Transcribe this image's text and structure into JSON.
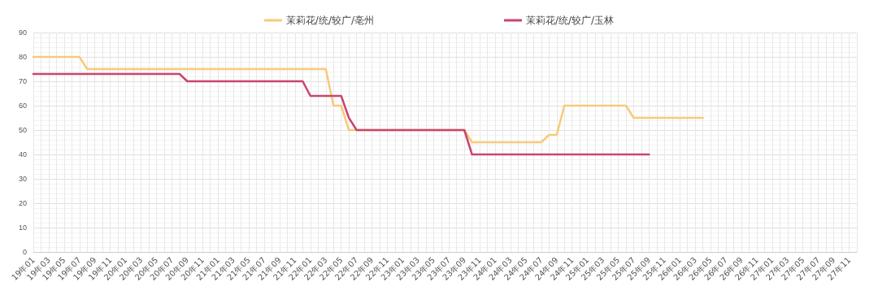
{
  "chart_data": {
    "type": "line",
    "categories": [
      "19年01",
      null,
      "19年03",
      null,
      "19年05",
      null,
      "19年07",
      null,
      "19年09",
      null,
      "19年11",
      null,
      "20年01",
      null,
      "20年03",
      null,
      "20年05",
      null,
      "20年07",
      null,
      "20年09",
      null,
      "20年11",
      null,
      "21年01",
      null,
      "21年03",
      null,
      "21年05",
      null,
      "21年07",
      null,
      "21年09",
      null,
      "21年11",
      null,
      "22年01",
      null,
      "22年03",
      null,
      "22年05",
      null,
      "22年07",
      null,
      "22年09",
      null,
      "22年11",
      null,
      "23年01",
      null,
      "23年03",
      null,
      "23年05",
      null,
      "23年07",
      null,
      "23年09",
      null,
      "23年11",
      null,
      "24年01",
      null,
      "24年03",
      null,
      "24年05",
      null,
      "24年07",
      null,
      "24年09",
      null,
      "24年11",
      null,
      "25年01",
      null,
      "25年03",
      null,
      "25年05",
      null,
      "25年07",
      null,
      "25年09",
      null,
      "25年11",
      null,
      "26年01",
      null,
      "26年03",
      null,
      "26年05",
      null,
      "26年07",
      null,
      "26年09",
      null,
      "26年11",
      null,
      "27年01",
      null,
      "27年03",
      null,
      "27年05",
      null,
      "27年07",
      null,
      "27年09",
      null,
      "27年11",
      null
    ],
    "series": [
      {
        "name": "茉莉花/统/较广/亳州",
        "color": "#f8c97a",
        "values": [
          80,
          80,
          80,
          80,
          80,
          80,
          80,
          75,
          75,
          75,
          75,
          75,
          75,
          75,
          75,
          75,
          75,
          75,
          75,
          75,
          75,
          75,
          75,
          75,
          75,
          75,
          75,
          75,
          75,
          75,
          75,
          75,
          75,
          75,
          75,
          75,
          75,
          75,
          75,
          60,
          60,
          50,
          50,
          50,
          50,
          50,
          50,
          50,
          50,
          50,
          50,
          50,
          50,
          50,
          50,
          50,
          50,
          45,
          45,
          45,
          45,
          45,
          45,
          45,
          45,
          45,
          45,
          48,
          48,
          60,
          60,
          60,
          60,
          60,
          60,
          60,
          60,
          60,
          55,
          55,
          55,
          55,
          55,
          55,
          55,
          55,
          55,
          55,
          null,
          null,
          null,
          null,
          null,
          null,
          null,
          null,
          null,
          null,
          null,
          null,
          null,
          null,
          null,
          null,
          null,
          null,
          null,
          null
        ]
      },
      {
        "name": "茉莉花/统/较广/玉林",
        "color": "#c9456e",
        "values": [
          73,
          73,
          73,
          73,
          73,
          73,
          73,
          73,
          73,
          73,
          73,
          73,
          73,
          73,
          73,
          73,
          73,
          73,
          73,
          73,
          70,
          70,
          70,
          70,
          70,
          70,
          70,
          70,
          70,
          70,
          70,
          70,
          70,
          70,
          70,
          70,
          64,
          64,
          64,
          64,
          64,
          55,
          50,
          50,
          50,
          50,
          50,
          50,
          50,
          50,
          50,
          50,
          50,
          50,
          50,
          50,
          50,
          40,
          40,
          40,
          40,
          40,
          40,
          40,
          40,
          40,
          40,
          40,
          40,
          40,
          40,
          40,
          40,
          40,
          40,
          40,
          40,
          40,
          40,
          40,
          40,
          null,
          null,
          null,
          null,
          null,
          null,
          null,
          null,
          null,
          null,
          null,
          null,
          null,
          null,
          null,
          null,
          null,
          null,
          null,
          null,
          null,
          null,
          null,
          null,
          null,
          null,
          null
        ]
      }
    ],
    "ylim": [
      0,
      90
    ],
    "yticks": [
      0,
      10,
      20,
      30,
      40,
      50,
      60,
      70,
      80,
      90
    ],
    "grid": true,
    "legend": "top",
    "marker": "none",
    "line_style": "solid"
  }
}
